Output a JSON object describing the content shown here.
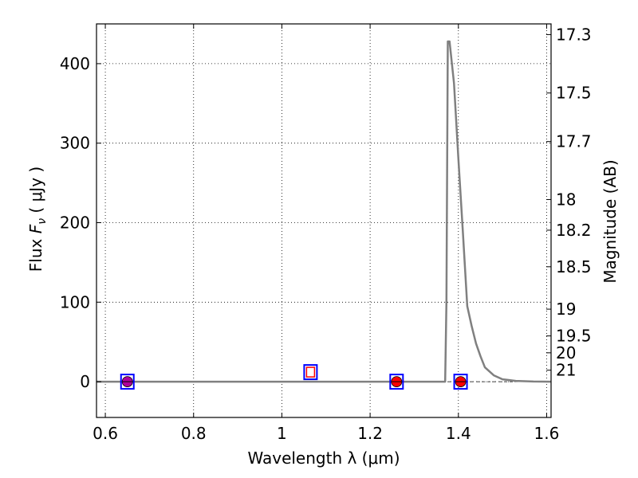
{
  "chart_data": {
    "type": "line",
    "xlabel": "Wavelength  λ (μm)",
    "ylabel": "Flux  F_ν  ( μJy )",
    "y2label": "Magnitude (AB)",
    "xlim": [
      0.58,
      1.61
    ],
    "ylim": [
      -45,
      450
    ],
    "grid": true,
    "x_ticks": [
      0.6,
      0.8,
      1.0,
      1.2,
      1.4,
      1.6
    ],
    "x_tick_labels": [
      "0.6",
      "0.8",
      "1",
      "1.2",
      "1.4",
      "1.6"
    ],
    "y_ticks": [
      0,
      100,
      200,
      300,
      400
    ],
    "y_tick_labels": [
      "0",
      "100",
      "200",
      "300",
      "400"
    ],
    "y2_ticks": [
      {
        "label": "17.3",
        "value": 17.3
      },
      {
        "label": "17.5",
        "value": 17.5
      },
      {
        "label": "17.7",
        "value": 17.7
      },
      {
        "label": "18",
        "value": 18.0
      },
      {
        "label": "18.2",
        "value": 18.2
      },
      {
        "label": "18.5",
        "value": 18.5
      },
      {
        "label": "19",
        "value": 19.0
      },
      {
        "label": "19.5",
        "value": 19.5
      },
      {
        "label": "20",
        "value": 20.0
      },
      {
        "label": "21",
        "value": 21.0
      }
    ],
    "model_color": "#808080",
    "model_x": [
      0.58,
      1.37,
      1.373,
      1.376,
      1.38,
      1.39,
      1.4,
      1.41,
      1.42,
      1.43,
      1.44,
      1.45,
      1.46,
      1.48,
      1.5,
      1.53,
      1.57,
      1.61
    ],
    "model_y": [
      0,
      0,
      100,
      428,
      428,
      375,
      280,
      190,
      95,
      70,
      48,
      32,
      18,
      8,
      3,
      1,
      0.2,
      0
    ],
    "points_circle": {
      "color": "#ff0000",
      "x": [
        0.65,
        1.26,
        1.405
      ],
      "y": [
        0,
        0,
        0
      ]
    },
    "points_square": {
      "color": "#0000ff",
      "x": [
        0.65,
        1.065,
        1.26,
        1.405
      ],
      "y": [
        0,
        12,
        0,
        0
      ]
    },
    "hollow_marker_color": "#ff0000"
  }
}
